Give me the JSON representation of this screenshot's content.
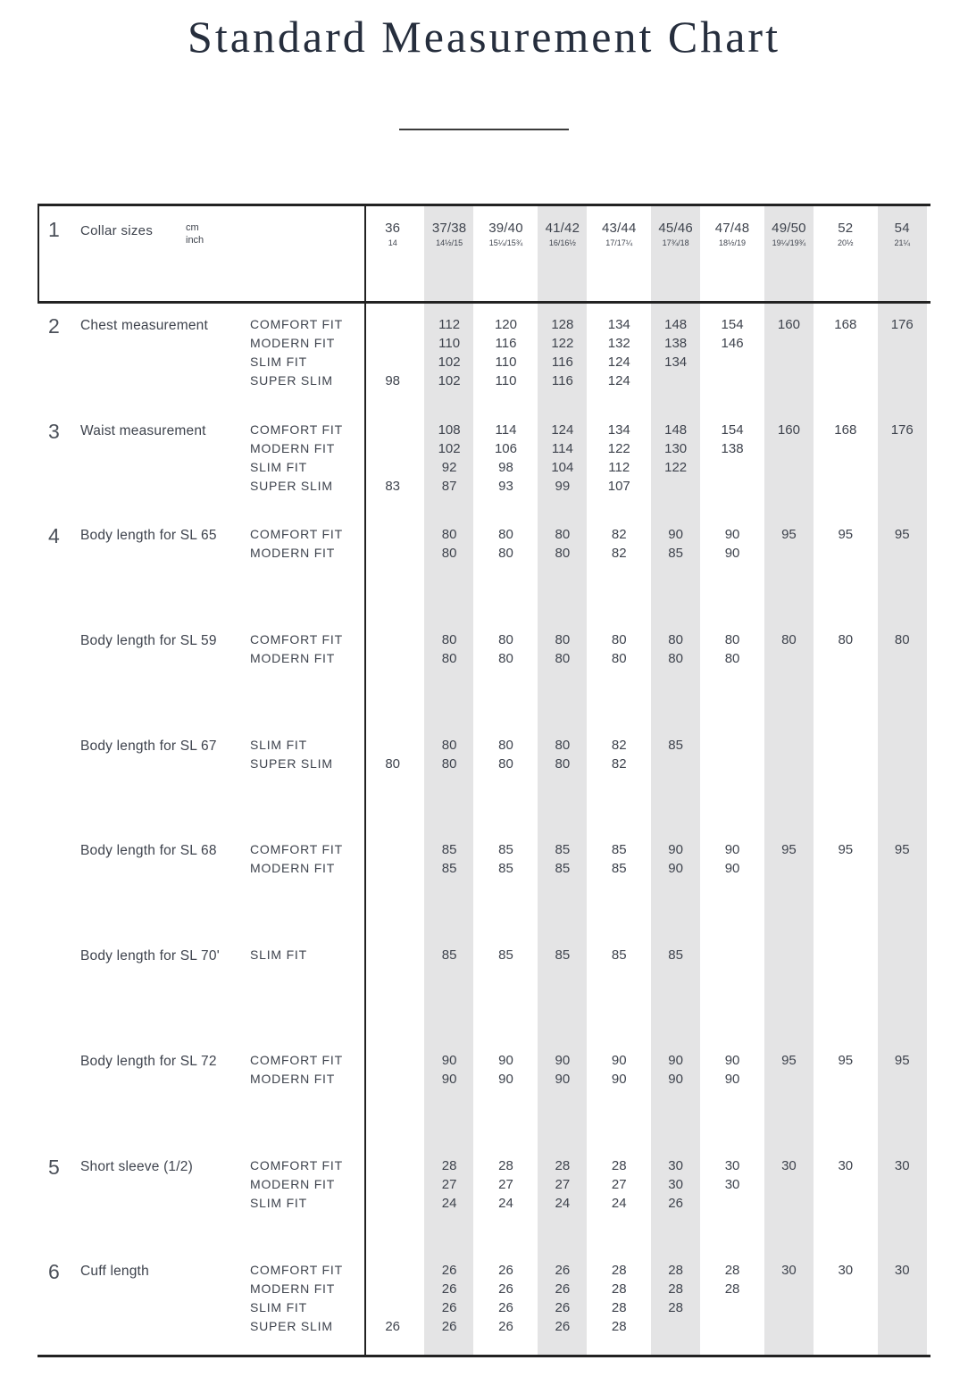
{
  "page": {
    "title": "Standard Measurement Chart"
  },
  "style": {
    "stripe_color": "#e4e4e5",
    "border_color": "#222222",
    "text_color": "#3e434d",
    "title_color": "#262e3d"
  },
  "table": {
    "header": {
      "number": "1",
      "label": "Collar sizes",
      "unit_primary": "cm",
      "unit_secondary": "inch",
      "columns": [
        {
          "cm": "36",
          "inch": "14",
          "shaded": false
        },
        {
          "cm": "37/38",
          "inch": "14½/15",
          "shaded": true
        },
        {
          "cm": "39/40",
          "inch": "15¼/15¾",
          "shaded": false
        },
        {
          "cm": "41/42",
          "inch": "16/16½",
          "shaded": true
        },
        {
          "cm": "43/44",
          "inch": "17/17¼",
          "shaded": false
        },
        {
          "cm": "45/46",
          "inch": "17¾/18",
          "shaded": true
        },
        {
          "cm": "47/48",
          "inch": "18½/19",
          "shaded": false
        },
        {
          "cm": "49/50",
          "inch": "19¼/19¾",
          "shaded": true
        },
        {
          "cm": "52",
          "inch": "20½",
          "shaded": false
        },
        {
          "cm": "54",
          "inch": "21¼",
          "shaded": true
        }
      ]
    },
    "sections": [
      {
        "number": "2",
        "label": "Chest measurement",
        "rows": [
          {
            "fit": "COMFORT FIT",
            "values": [
              "",
              "112",
              "120",
              "128",
              "134",
              "148",
              "154",
              "160",
              "168",
              "176"
            ]
          },
          {
            "fit": "MODERN FIT",
            "values": [
              "",
              "110",
              "116",
              "122",
              "132",
              "138",
              "146",
              "",
              "",
              ""
            ]
          },
          {
            "fit": "SLIM FIT",
            "values": [
              "",
              "102",
              "110",
              "116",
              "124",
              "134",
              "",
              "",
              "",
              ""
            ]
          },
          {
            "fit": "SUPER SLIM",
            "values": [
              "98",
              "102",
              "110",
              "116",
              "124",
              "",
              "",
              "",
              "",
              ""
            ]
          }
        ]
      },
      {
        "number": "3",
        "label": "Waist measurement",
        "rows": [
          {
            "fit": "COMFORT FIT",
            "values": [
              "",
              "108",
              "114",
              "124",
              "134",
              "148",
              "154",
              "160",
              "168",
              "176"
            ]
          },
          {
            "fit": "MODERN FIT",
            "values": [
              "",
              "102",
              "106",
              "114",
              "122",
              "130",
              "138",
              "",
              "",
              ""
            ]
          },
          {
            "fit": "SLIM FIT",
            "values": [
              "",
              "92",
              "98",
              "104",
              "112",
              "122",
              "",
              "",
              "",
              ""
            ]
          },
          {
            "fit": "SUPER SLIM",
            "values": [
              "83",
              "87",
              "93",
              "99",
              "107",
              "",
              "",
              "",
              "",
              ""
            ]
          }
        ]
      },
      {
        "number": "4",
        "label": "Body length for SL 65",
        "rows": [
          {
            "fit": "COMFORT FIT",
            "values": [
              "",
              "80",
              "80",
              "80",
              "82",
              "90",
              "90",
              "95",
              "95",
              "95"
            ]
          },
          {
            "fit": "MODERN FIT",
            "values": [
              "",
              "80",
              "80",
              "80",
              "82",
              "85",
              "90",
              "",
              "",
              ""
            ]
          }
        ]
      },
      {
        "number": "",
        "label": "Body length for SL 59",
        "rows": [
          {
            "fit": "COMFORT FIT",
            "values": [
              "",
              "80",
              "80",
              "80",
              "80",
              "80",
              "80",
              "80",
              "80",
              "80"
            ]
          },
          {
            "fit": "MODERN FIT",
            "values": [
              "",
              "80",
              "80",
              "80",
              "80",
              "80",
              "80",
              "",
              "",
              ""
            ]
          }
        ]
      },
      {
        "number": "",
        "label": "Body length for SL 67",
        "rows": [
          {
            "fit": "SLIM FIT",
            "values": [
              "",
              "80",
              "80",
              "80",
              "82",
              "85",
              "",
              "",
              "",
              ""
            ]
          },
          {
            "fit": "SUPER SLIM",
            "values": [
              "80",
              "80",
              "80",
              "80",
              "82",
              "",
              "",
              "",
              "",
              ""
            ]
          }
        ]
      },
      {
        "number": "",
        "label": "Body length for SL 68",
        "rows": [
          {
            "fit": "COMFORT FIT",
            "values": [
              "",
              "85",
              "85",
              "85",
              "85",
              "90",
              "90",
              "95",
              "95",
              "95"
            ]
          },
          {
            "fit": "MODERN FIT",
            "values": [
              "",
              "85",
              "85",
              "85",
              "85",
              "90",
              "90",
              "",
              "",
              ""
            ]
          }
        ]
      },
      {
        "number": "",
        "label": "Body length for SL 70'",
        "rows": [
          {
            "fit": "SLIM FIT",
            "values": [
              "",
              "85",
              "85",
              "85",
              "85",
              "85",
              "",
              "",
              "",
              ""
            ]
          }
        ]
      },
      {
        "number": "",
        "label": "Body length for SL 72",
        "rows": [
          {
            "fit": "COMFORT FIT",
            "values": [
              "",
              "90",
              "90",
              "90",
              "90",
              "90",
              "90",
              "95",
              "95",
              "95"
            ]
          },
          {
            "fit": "MODERN FIT",
            "values": [
              "",
              "90",
              "90",
              "90",
              "90",
              "90",
              "90",
              "",
              "",
              ""
            ]
          }
        ]
      },
      {
        "number": "5",
        "label": "Short sleeve (1/2)",
        "rows": [
          {
            "fit": "COMFORT FIT",
            "values": [
              "",
              "28",
              "28",
              "28",
              "28",
              "30",
              "30",
              "30",
              "30",
              "30"
            ]
          },
          {
            "fit": "MODERN FIT",
            "values": [
              "",
              "27",
              "27",
              "27",
              "27",
              "30",
              "30",
              "",
              "",
              ""
            ]
          },
          {
            "fit": "SLIM FIT",
            "values": [
              "",
              "24",
              "24",
              "24",
              "24",
              "26",
              "",
              "",
              "",
              ""
            ]
          }
        ]
      },
      {
        "number": "6",
        "label": "Cuff length",
        "rows": [
          {
            "fit": "COMFORT FIT",
            "values": [
              "",
              "26",
              "26",
              "26",
              "28",
              "28",
              "28",
              "30",
              "30",
              "30"
            ]
          },
          {
            "fit": "MODERN FIT",
            "values": [
              "",
              "26",
              "26",
              "26",
              "28",
              "28",
              "28",
              "",
              "",
              ""
            ]
          },
          {
            "fit": "SLIM FIT",
            "values": [
              "",
              "26",
              "26",
              "26",
              "28",
              "28",
              "",
              "",
              "",
              ""
            ]
          },
          {
            "fit": "SUPER SLIM",
            "values": [
              "26",
              "26",
              "26",
              "26",
              "28",
              "",
              "",
              "",
              "",
              ""
            ]
          }
        ]
      }
    ]
  }
}
